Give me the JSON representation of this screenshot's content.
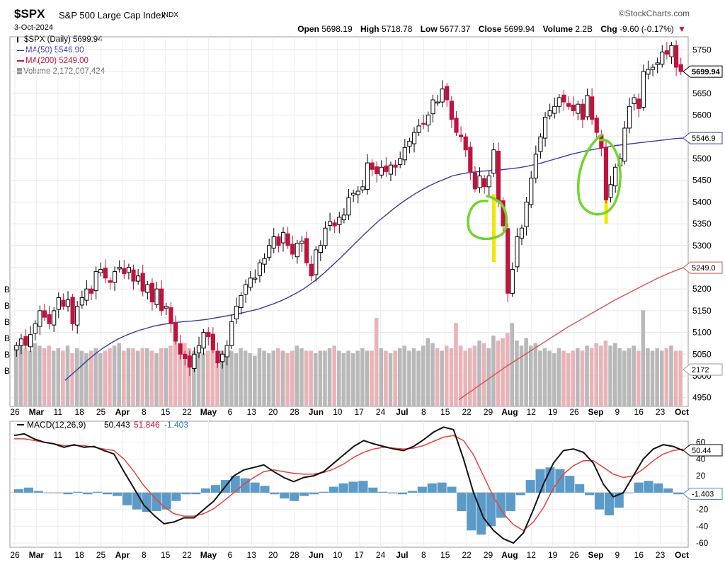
{
  "header": {
    "symbol": "$SPX",
    "name": "S&P 500 Large Cap Index",
    "exchange": "INDX",
    "date": "3-Oct-2024",
    "brand": "©StockCharts.com",
    "open_label": "Open",
    "open": "5698.19",
    "high_label": "High",
    "high": "5718.78",
    "low_label": "Low",
    "low": "5677.37",
    "close_label": "Close",
    "close": "5699.94",
    "volume_label": "Volume",
    "volume": "2.2B",
    "chg_label": "Chg",
    "chg": "-9.60 (-0.17%)",
    "chg_arrow": "▼"
  },
  "legend": {
    "price": "$SPX (Daily) 5699.94",
    "ma50": "MA(50) 5546.90",
    "ma200": "MA(200) 5249.00",
    "volume": "Volume 2,172,007,424",
    "macd_label": "MACD(12,26,9)",
    "macd_value": "50.443",
    "signal_value": "51.846",
    "hist_value": "-1.403"
  },
  "colors": {
    "up": "#000000",
    "down": "#c0133d",
    "ma50": "#3b3ba0",
    "ma200": "#d9534f",
    "vol_up": "#b9b9b9",
    "vol_down": "#e8b4b8",
    "macd": "#111111",
    "signal": "#e3443a",
    "hist": "#4a90c2",
    "highlight": "#f3e600",
    "annotation": "#6fd62c"
  },
  "x_axis_labels": [
    "26",
    "Mar",
    "11",
    "18",
    "25",
    "Apr",
    "8",
    "15",
    "22",
    "May",
    "6",
    "13",
    "20",
    "28",
    "Jun",
    "10",
    "17",
    "24",
    "Jul",
    "8",
    "15",
    "22",
    "29",
    "Aug",
    "12",
    "19",
    "26",
    "Sep",
    "9",
    "16",
    "23",
    "Oct"
  ],
  "volume_axis_labels": [
    "B",
    "B",
    "B",
    "B",
    "B",
    "B"
  ],
  "chart_data": [
    {
      "type": "candlestick",
      "title": "$SPX (Daily) 5699.94",
      "ylim": [
        4930,
        5780
      ],
      "y_ticks": [
        "4950",
        "5000",
        "5050",
        "5100",
        "5150",
        "5200",
        "5250",
        "5300",
        "5350",
        "5400",
        "5450",
        "5500",
        "5550",
        "5600",
        "5650",
        "5700",
        "5750"
      ],
      "last_price_tag": "5699.94",
      "ma50_tag": "5546.9",
      "ma200_tag": "5249.0",
      "volume_tag": "2172",
      "closes": [
        5070,
        5085,
        5070,
        5095,
        5120,
        5150,
        5135,
        5120,
        5150,
        5180,
        5160,
        5175,
        5120,
        5160,
        5180,
        5200,
        5190,
        5240,
        5245,
        5225,
        5215,
        5240,
        5250,
        5235,
        5250,
        5218,
        5230,
        5195,
        5210,
        5170,
        5200,
        5150,
        5160,
        5120,
        5080,
        5050,
        5040,
        5020,
        5050,
        5070,
        5100,
        5090,
        5060,
        5030,
        5050,
        5070,
        5125,
        5160,
        5185,
        5210,
        5225,
        5225,
        5260,
        5270,
        5300,
        5320,
        5300,
        5330,
        5300,
        5280,
        5305,
        5310,
        5260,
        5230,
        5290,
        5300,
        5340,
        5355,
        5345,
        5365,
        5370,
        5410,
        5420,
        5425,
        5435,
        5490,
        5475,
        5465,
        5480,
        5470,
        5485,
        5480,
        5500,
        5525,
        5540,
        5560,
        5575,
        5580,
        5600,
        5635,
        5630,
        5660,
        5635,
        5590,
        5560,
        5550,
        5520,
        5470,
        5430,
        5460,
        5435,
        5460,
        5520,
        5400,
        5345,
        5190,
        5245,
        5320,
        5340,
        5400,
        5455,
        5510,
        5550,
        5595,
        5610,
        5620,
        5640,
        5630,
        5620,
        5610,
        5625,
        5590,
        5645,
        5590,
        5560,
        5525,
        5405,
        5440,
        5480,
        5500,
        5570,
        5620,
        5640,
        5615,
        5700,
        5705,
        5710,
        5720,
        5745,
        5740,
        5760,
        5710,
        5700
      ],
      "ma50": [
        4990,
        5005,
        5020,
        5036,
        5050,
        5063,
        5074,
        5084,
        5092,
        5099,
        5105,
        5110,
        5115,
        5118,
        5121,
        5123,
        5125,
        5126,
        5128,
        5130,
        5133,
        5136,
        5139,
        5142,
        5146,
        5150,
        5154,
        5160,
        5166,
        5173,
        5181,
        5190,
        5200,
        5212,
        5225,
        5240,
        5256,
        5272,
        5289,
        5306,
        5323,
        5339,
        5355,
        5369,
        5383,
        5396,
        5408,
        5419,
        5429,
        5438,
        5446,
        5453,
        5460,
        5464,
        5467,
        5469,
        5471,
        5472,
        5473,
        5475,
        5477,
        5479,
        5482,
        5486,
        5490,
        5495,
        5500,
        5505,
        5510,
        5514,
        5518,
        5521,
        5524,
        5527,
        5530,
        5532,
        5534,
        5536,
        5538,
        5540,
        5542,
        5544,
        5546,
        5547
      ],
      "ma200": [
        4945,
        4956,
        4967,
        4978,
        4989,
        5000,
        5011,
        5022,
        5032,
        5042,
        5052,
        5062,
        5072,
        5082,
        5092,
        5102,
        5112,
        5121,
        5130,
        5139,
        5148,
        5157,
        5166,
        5175,
        5183,
        5191,
        5199,
        5207,
        5215,
        5223,
        5230,
        5237,
        5243,
        5249
      ]
    },
    {
      "type": "bar",
      "title": "Volume 2,172,007,424",
      "values_billions": [
        2.4,
        2.6,
        2.3,
        2.2,
        2.5,
        2.4,
        2.3,
        2.4,
        2.2,
        2.3,
        2.2,
        2.4,
        2.1,
        2.3,
        2.2,
        2.1,
        2.2,
        2.3,
        2.1,
        2.2,
        2.3,
        2.4,
        2.5,
        2.2,
        2.3,
        2.3,
        2.2,
        2.3,
        2.3,
        2.2,
        2.1,
        2.3,
        2.3,
        2.4,
        2.6,
        2.4,
        2.5,
        2.3,
        2.2,
        2.4,
        2.1,
        2.2,
        2.3,
        2.1,
        2.2,
        2.3,
        2.2,
        2.1,
        2.3,
        2.2,
        2.1,
        2.0,
        2.3,
        2.2,
        2.1,
        2.2,
        2.3,
        2.2,
        2.1,
        2.2,
        2.4,
        2.3,
        2.2,
        2.2,
        2.1,
        2.2,
        2.2,
        2.3,
        2.4,
        2.2,
        2.1,
        2.2,
        2.1,
        2.2,
        2.3,
        2.2,
        2.2,
        3.5,
        2.3,
        2.2,
        2.1,
        2.2,
        2.3,
        2.4,
        2.2,
        2.3,
        2.2,
        2.4,
        2.7,
        2.5,
        2.3,
        2.2,
        2.4,
        2.3,
        3.3,
        2.4,
        2.2,
        2.3,
        2.4,
        2.6,
        2.5,
        2.3,
        2.8,
        2.6,
        2.7,
        2.9,
        3.3,
        2.6,
        2.4,
        2.7,
        2.4,
        2.5,
        2.2,
        2.3,
        2.2,
        2.1,
        2.3,
        2.2,
        2.1,
        2.2,
        2.3,
        2.2,
        2.4,
        2.3,
        2.5,
        2.4,
        2.6,
        2.4,
        2.5,
        2.3,
        2.2,
        2.3,
        2.4,
        2.2,
        3.8,
        2.3,
        2.2,
        2.3,
        2.2,
        2.3,
        2.4,
        2.2,
        2.2
      ]
    },
    {
      "type": "line",
      "title": "MACD(12,26,9) 50.443, 51.846, -1.403",
      "ylim": [
        -65,
        85
      ],
      "y_ticks": [
        "-60",
        "-40",
        "-20",
        "0",
        "20",
        "40",
        "60"
      ],
      "macd_tag": "50.44",
      "hist_tag": "-1.403",
      "series": [
        {
          "name": "MACD",
          "values": [
            68,
            70,
            64,
            60,
            58,
            54,
            57,
            54,
            55,
            50,
            46,
            25,
            5,
            -15,
            -27,
            -37,
            -35,
            -30,
            -30,
            -20,
            -10,
            5,
            20,
            27,
            30,
            33,
            25,
            18,
            13,
            18,
            20,
            25,
            35,
            45,
            55,
            62,
            58,
            55,
            52,
            50,
            55,
            63,
            72,
            78,
            75,
            40,
            0,
            -30,
            -45,
            -55,
            -60,
            -48,
            -20,
            10,
            35,
            50,
            52,
            48,
            35,
            10,
            -5,
            0,
            20,
            40,
            52,
            57,
            55,
            50
          ]
        },
        {
          "name": "Signal",
          "values": [
            64,
            64,
            62,
            60,
            58,
            56,
            56,
            56,
            54,
            52,
            50,
            40,
            25,
            8,
            -5,
            -17,
            -25,
            -28,
            -28,
            -25,
            -19,
            -10,
            0,
            10,
            18,
            25,
            27,
            25,
            23,
            22,
            22,
            24,
            28,
            34,
            42,
            48,
            52,
            54,
            53,
            52,
            53,
            56,
            61,
            66,
            68,
            62,
            45,
            20,
            -5,
            -25,
            -38,
            -45,
            -35,
            -18,
            5,
            22,
            32,
            38,
            38,
            30,
            22,
            18,
            20,
            28,
            38,
            46,
            50,
            52
          ]
        },
        {
          "name": "Histogram",
          "values": [
            4,
            6,
            2,
            0,
            0,
            -2,
            1,
            -2,
            1,
            -2,
            -4,
            -15,
            -20,
            -23,
            -22,
            -20,
            -10,
            -2,
            -2,
            5,
            9,
            15,
            20,
            17,
            12,
            8,
            -2,
            -7,
            -10,
            -4,
            -2,
            1,
            7,
            11,
            13,
            14,
            6,
            1,
            -1,
            -2,
            2,
            7,
            11,
            12,
            7,
            -22,
            -45,
            -50,
            -40,
            -30,
            -22,
            -3,
            15,
            28,
            30,
            28,
            20,
            10,
            -3,
            -20,
            -27,
            -18,
            0,
            12,
            14,
            11,
            5,
            -2
          ]
        }
      ]
    }
  ]
}
